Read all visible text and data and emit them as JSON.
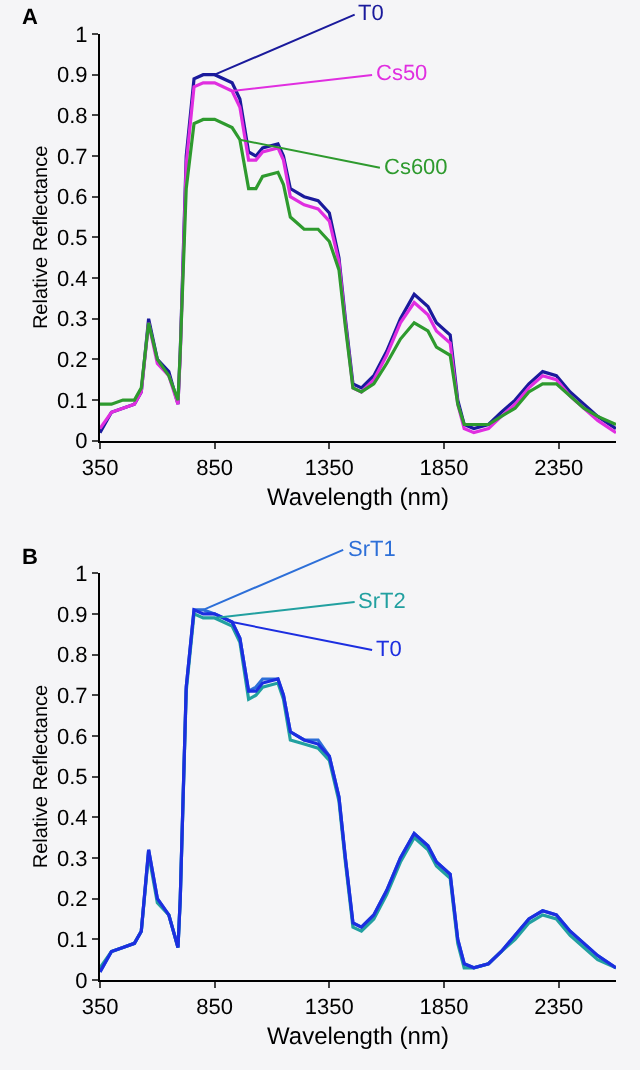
{
  "chart_data": [
    {
      "type": "line",
      "title": "A",
      "xlabel": "Wavelength (nm)",
      "ylabel": "Relative Reflectance",
      "x": [
        350,
        400,
        450,
        500,
        530,
        562,
        600,
        650,
        690,
        700,
        726,
        760,
        800,
        850,
        926,
        960,
        998,
        1030,
        1059,
        1126,
        1150,
        1180,
        1240,
        1301,
        1350,
        1392,
        1420,
        1453,
        1490,
        1544,
        1600,
        1660,
        1720,
        1780,
        1817,
        1877,
        1910,
        1938,
        1980,
        2044,
        2100,
        2160,
        2220,
        2280,
        2340,
        2400,
        2460,
        2520,
        2600
      ],
      "series": [
        {
          "name": "T0",
          "color": "#1a1a9c",
          "values": [
            0.02,
            0.07,
            0.08,
            0.09,
            0.12,
            0.3,
            0.2,
            0.17,
            0.09,
            0.22,
            0.7,
            0.89,
            0.9,
            0.9,
            0.88,
            0.84,
            0.71,
            0.7,
            0.72,
            0.73,
            0.7,
            0.62,
            0.6,
            0.59,
            0.56,
            0.45,
            0.3,
            0.14,
            0.13,
            0.16,
            0.22,
            0.3,
            0.36,
            0.33,
            0.29,
            0.26,
            0.1,
            0.04,
            0.03,
            0.04,
            0.07,
            0.1,
            0.14,
            0.17,
            0.16,
            0.12,
            0.09,
            0.06,
            0.03
          ]
        },
        {
          "name": "Cs50",
          "color": "#e02ee0",
          "values": [
            0.03,
            0.07,
            0.08,
            0.09,
            0.12,
            0.29,
            0.19,
            0.16,
            0.09,
            0.21,
            0.68,
            0.87,
            0.88,
            0.88,
            0.86,
            0.82,
            0.69,
            0.69,
            0.71,
            0.72,
            0.69,
            0.6,
            0.58,
            0.57,
            0.54,
            0.44,
            0.29,
            0.13,
            0.12,
            0.15,
            0.21,
            0.29,
            0.34,
            0.31,
            0.27,
            0.24,
            0.09,
            0.03,
            0.02,
            0.03,
            0.06,
            0.09,
            0.13,
            0.16,
            0.15,
            0.11,
            0.08,
            0.05,
            0.02
          ]
        },
        {
          "name": "Cs600",
          "color": "#2e9a2e",
          "values": [
            0.09,
            0.09,
            0.1,
            0.1,
            0.13,
            0.29,
            0.2,
            0.16,
            0.1,
            0.22,
            0.62,
            0.78,
            0.79,
            0.79,
            0.77,
            0.74,
            0.62,
            0.62,
            0.65,
            0.66,
            0.63,
            0.55,
            0.52,
            0.52,
            0.49,
            0.42,
            0.28,
            0.13,
            0.12,
            0.14,
            0.19,
            0.25,
            0.29,
            0.27,
            0.23,
            0.21,
            0.09,
            0.04,
            0.04,
            0.04,
            0.06,
            0.08,
            0.12,
            0.14,
            0.14,
            0.11,
            0.08,
            0.06,
            0.04
          ]
        }
      ],
      "xlim": [
        350,
        2600
      ],
      "xticks": [
        350,
        850,
        1350,
        1850,
        2350
      ],
      "ylim": [
        0,
        1
      ],
      "yticks": [
        0,
        0.1,
        0.2,
        0.3,
        0.4,
        0.5,
        0.6,
        0.7,
        0.8,
        0.9,
        1
      ],
      "grid": false,
      "legend": false,
      "line_style": "solid"
    },
    {
      "type": "line",
      "title": "B",
      "xlabel": "Wavelength (nm)",
      "ylabel": "Relative Reflectance",
      "x": [
        350,
        400,
        450,
        500,
        530,
        562,
        600,
        650,
        690,
        700,
        726,
        760,
        800,
        850,
        926,
        960,
        998,
        1030,
        1059,
        1126,
        1150,
        1180,
        1240,
        1301,
        1350,
        1392,
        1420,
        1453,
        1490,
        1544,
        1600,
        1660,
        1720,
        1780,
        1817,
        1877,
        1910,
        1938,
        1980,
        2044,
        2100,
        2160,
        2220,
        2280,
        2340,
        2400,
        2460,
        2520,
        2600
      ],
      "series": [
        {
          "name": "SrT1",
          "color": "#2d6fd8",
          "values": [
            0.02,
            0.07,
            0.08,
            0.09,
            0.12,
            0.32,
            0.2,
            0.16,
            0.08,
            0.2,
            0.72,
            0.91,
            0.91,
            0.9,
            0.88,
            0.84,
            0.71,
            0.72,
            0.74,
            0.74,
            0.7,
            0.61,
            0.59,
            0.59,
            0.55,
            0.45,
            0.3,
            0.14,
            0.13,
            0.16,
            0.22,
            0.3,
            0.36,
            0.33,
            0.29,
            0.26,
            0.1,
            0.04,
            0.03,
            0.04,
            0.07,
            0.11,
            0.15,
            0.17,
            0.16,
            0.12,
            0.09,
            0.06,
            0.03
          ]
        },
        {
          "name": "SrT2",
          "color": "#22a0a0",
          "values": [
            0.03,
            0.07,
            0.08,
            0.09,
            0.12,
            0.31,
            0.19,
            0.16,
            0.08,
            0.2,
            0.71,
            0.9,
            0.89,
            0.89,
            0.87,
            0.83,
            0.69,
            0.7,
            0.72,
            0.73,
            0.69,
            0.59,
            0.58,
            0.57,
            0.54,
            0.44,
            0.29,
            0.13,
            0.12,
            0.15,
            0.21,
            0.29,
            0.35,
            0.32,
            0.28,
            0.25,
            0.09,
            0.03,
            0.03,
            0.04,
            0.07,
            0.1,
            0.14,
            0.16,
            0.15,
            0.11,
            0.08,
            0.05,
            0.03
          ]
        },
        {
          "name": "T0",
          "color": "#1c2ee0",
          "values": [
            0.02,
            0.07,
            0.08,
            0.09,
            0.12,
            0.32,
            0.2,
            0.16,
            0.08,
            0.2,
            0.72,
            0.91,
            0.9,
            0.9,
            0.88,
            0.84,
            0.71,
            0.71,
            0.73,
            0.74,
            0.7,
            0.61,
            0.59,
            0.58,
            0.55,
            0.45,
            0.3,
            0.14,
            0.13,
            0.16,
            0.22,
            0.3,
            0.36,
            0.33,
            0.29,
            0.26,
            0.1,
            0.04,
            0.03,
            0.04,
            0.07,
            0.11,
            0.15,
            0.17,
            0.16,
            0.12,
            0.09,
            0.06,
            0.03
          ]
        }
      ],
      "xlim": [
        350,
        2600
      ],
      "xticks": [
        350,
        850,
        1350,
        1850,
        2350
      ],
      "ylim": [
        0,
        1
      ],
      "yticks": [
        0,
        0.1,
        0.2,
        0.3,
        0.4,
        0.5,
        0.6,
        0.7,
        0.8,
        0.9,
        1
      ],
      "grid": false,
      "legend": false,
      "line_style": "solid"
    }
  ]
}
